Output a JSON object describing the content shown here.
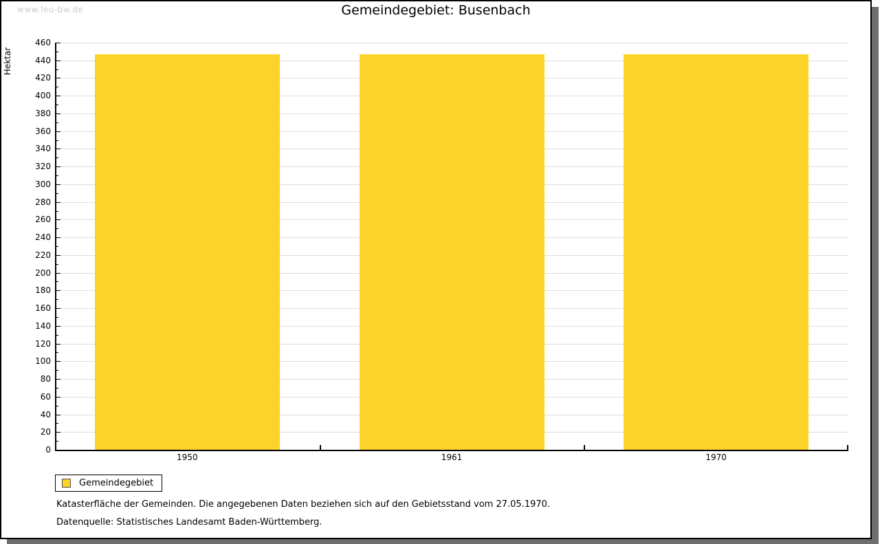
{
  "watermark": "www.leo-bw.de",
  "title": "Gemeindegebiet: Busenbach",
  "chart_data": {
    "type": "bar",
    "title": "Gemeindegebiet: Busenbach",
    "categories": [
      "1950",
      "1961",
      "1970"
    ],
    "values": [
      447,
      447,
      447
    ],
    "series_name": "Gemeindegebiet",
    "xlabel": "",
    "ylabel": "Hektar",
    "unit": "Hektar",
    "ylim": [
      0,
      460
    ],
    "ytick_major": 20,
    "ytick_minor": 10,
    "grid": true,
    "legend_position": "bottom-left",
    "bar_color": "#FCD32B",
    "grid_color": "#DDDDDD",
    "axis_color": "#000000"
  },
  "legend": {
    "items": [
      {
        "label": "Gemeindegebiet",
        "color": "#FCD32B"
      }
    ]
  },
  "footnotes": {
    "line1": "Katasterfläche der Gemeinden. Die angegebenen Daten beziehen sich auf den Gebietsstand vom 27.05.1970.",
    "line2": "Datenquelle: Statistisches Landesamt Baden-Württemberg."
  },
  "colors": {
    "page_background": "#FFFFFF",
    "page_border": "#000000",
    "drop_shadow": "#6E6E6E",
    "watermark": "#CCCCCC"
  }
}
